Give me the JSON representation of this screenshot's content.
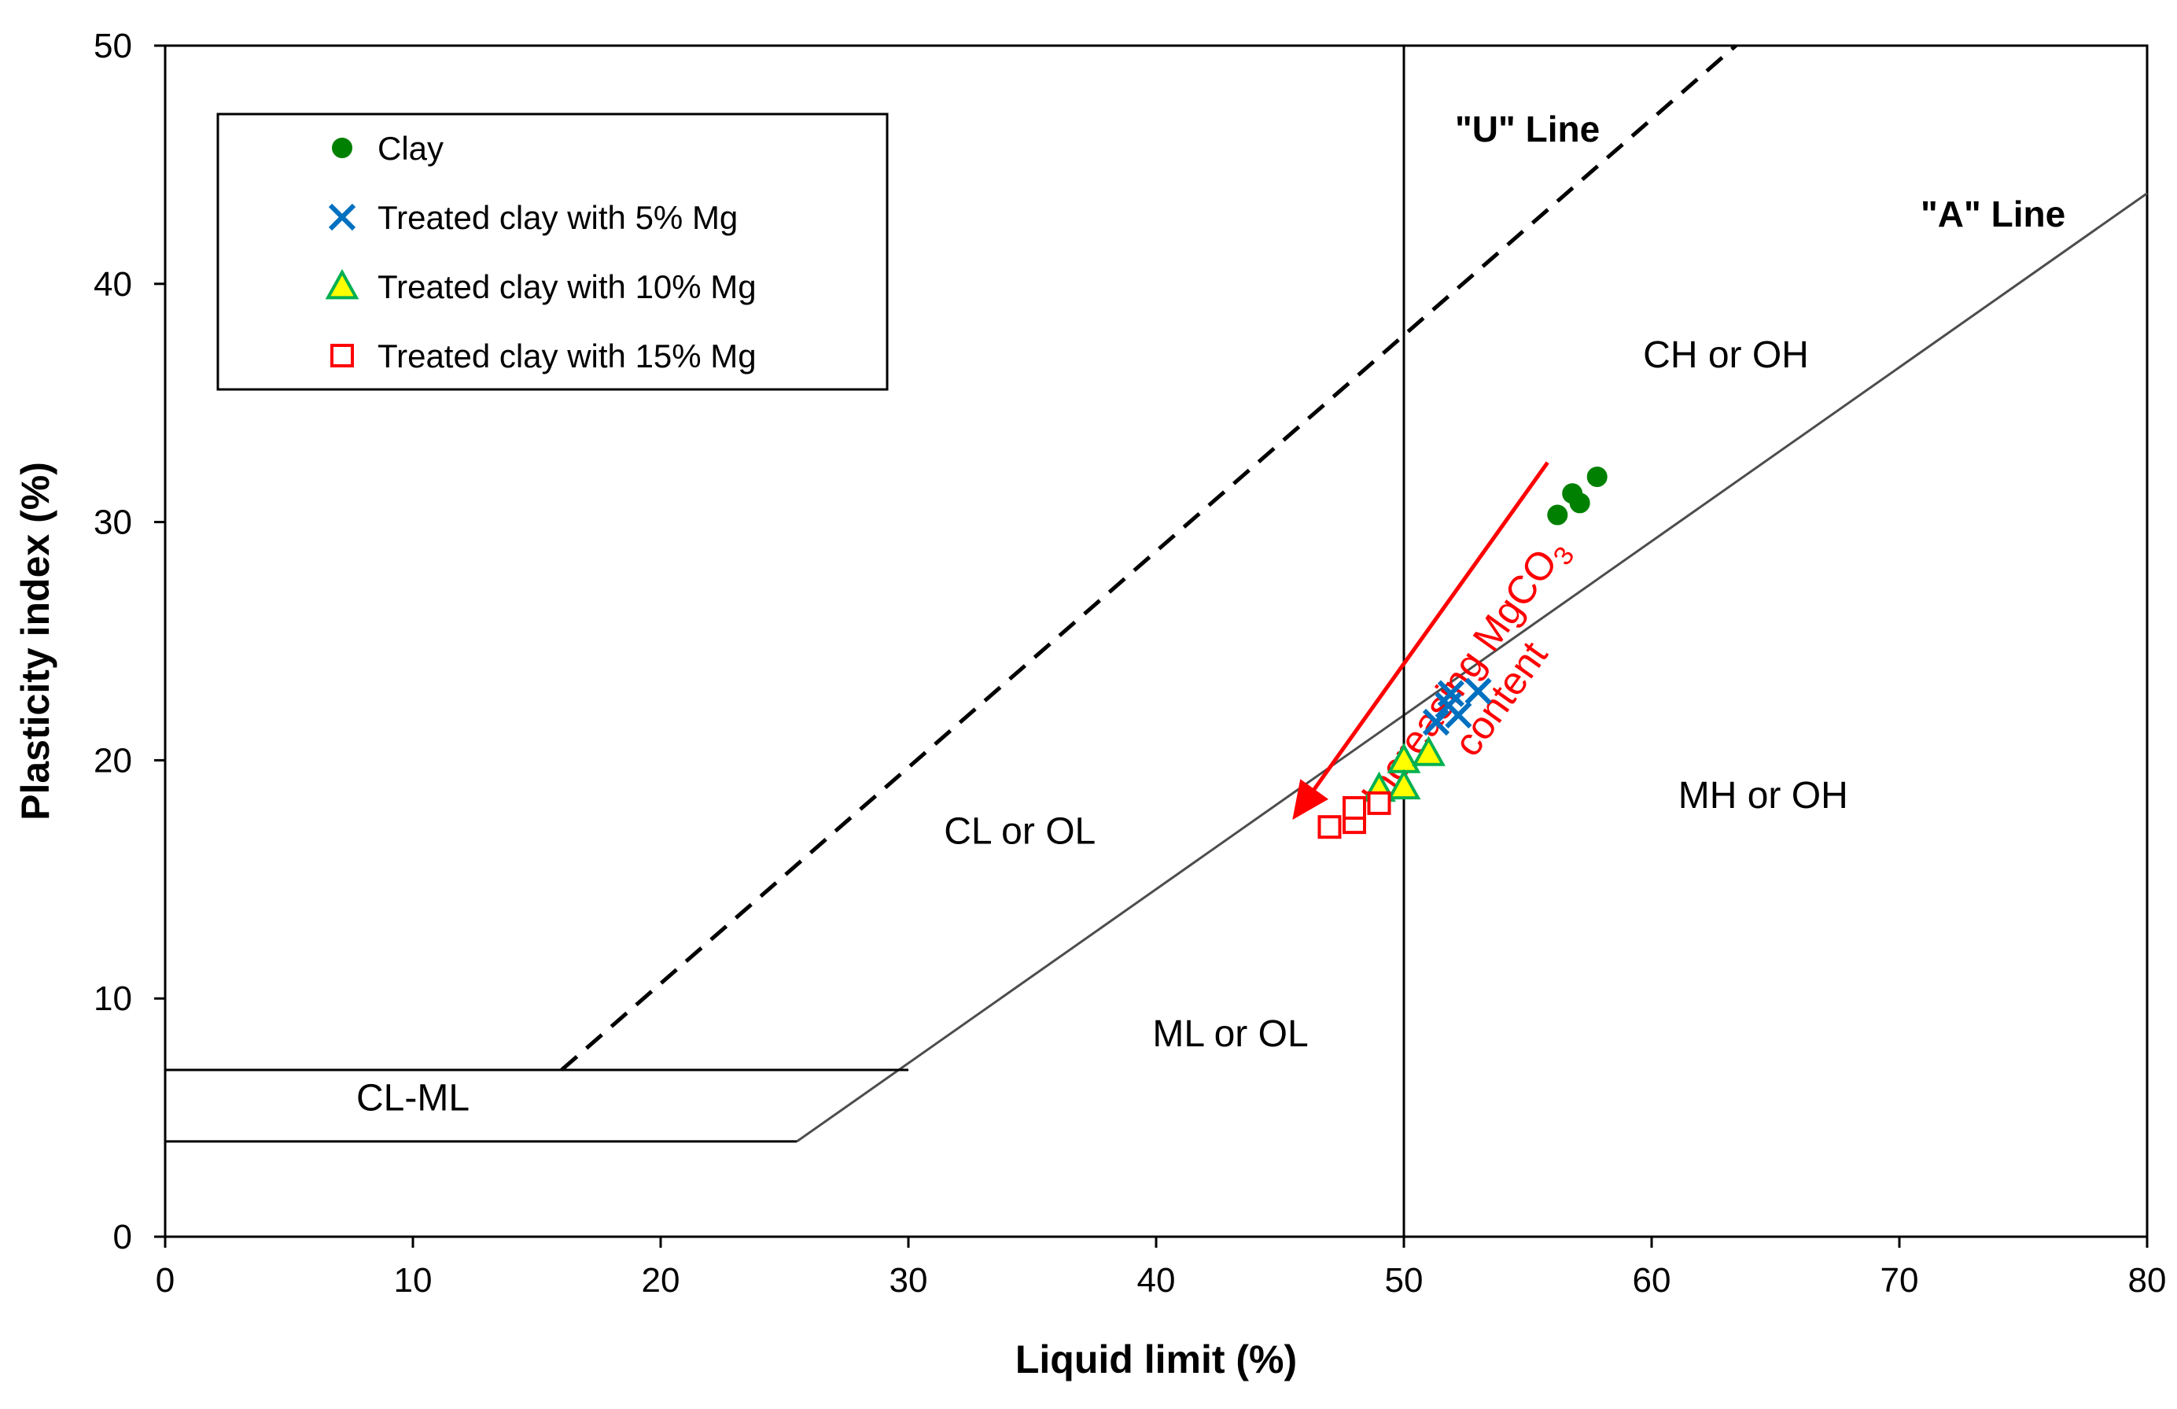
{
  "chart_data": {
    "type": "scatter",
    "title": "",
    "xlabel": "Liquid limit (%)",
    "ylabel": "Plasticity index (%)",
    "xlim": [
      0,
      80
    ],
    "ylim": [
      0,
      50
    ],
    "xticks": [
      0,
      10,
      20,
      30,
      40,
      50,
      60,
      70,
      80
    ],
    "yticks": [
      0,
      10,
      20,
      30,
      40,
      50
    ],
    "grid": false,
    "legend_position": "top-left",
    "series": [
      {
        "name": "Clay",
        "marker": "circle",
        "color": "#008000",
        "points": [
          [
            56.2,
            30.3
          ],
          [
            56.8,
            31.2
          ],
          [
            57.1,
            30.8
          ],
          [
            57.8,
            31.9
          ]
        ]
      },
      {
        "name": "Treated clay with 5% Mg",
        "marker": "x",
        "color": "#0070c0",
        "points": [
          [
            51.3,
            21.6
          ],
          [
            51.8,
            22.3
          ],
          [
            52.2,
            21.9
          ],
          [
            51.9,
            22.8
          ],
          [
            53.0,
            22.9
          ]
        ]
      },
      {
        "name": "Treated clay with 10% Mg",
        "marker": "triangle",
        "color": "#00b050",
        "fill": "#ffff00",
        "points": [
          [
            49.0,
            18.8
          ],
          [
            50.0,
            20.0
          ],
          [
            50.0,
            18.9
          ],
          [
            51.0,
            20.3
          ]
        ]
      },
      {
        "name": "Treated clay with 15% Mg",
        "marker": "square",
        "color": "#ff0000",
        "points": [
          [
            47.0,
            17.2
          ],
          [
            48.0,
            17.4
          ],
          [
            48.0,
            18.0
          ],
          [
            49.0,
            18.2
          ]
        ]
      }
    ],
    "reference_lines": {
      "a_line": {
        "label": "\"A\" Line",
        "points": [
          [
            25.5,
            4
          ],
          [
            80,
            43.8
          ]
        ]
      },
      "u_line": {
        "label": "\"U\" Line",
        "points": [
          [
            16,
            7
          ],
          [
            63.4,
            50
          ]
        ]
      },
      "ll50": {
        "x": 50
      },
      "cl_ml_upper": {
        "points": [
          [
            0,
            7
          ],
          [
            30,
            7
          ]
        ]
      },
      "cl_ml_lower": {
        "points": [
          [
            0,
            4
          ],
          [
            25.5,
            4
          ]
        ]
      }
    },
    "regions": [
      {
        "label": "CH or OH",
        "at": [
          63,
          36.5
        ]
      },
      {
        "label": "MH or OH",
        "at": [
          64.5,
          18
        ]
      },
      {
        "label": "CL or OL",
        "at": [
          34.5,
          16.5
        ]
      },
      {
        "label": "ML or OL",
        "at": [
          43,
          8
        ]
      },
      {
        "label": "CL-ML",
        "at": [
          10,
          5.3
        ]
      }
    ],
    "annotation": {
      "text_line1": "Increasing MgCO",
      "subscript": "3",
      "text_line2": "content",
      "arrow_from": [
        55.8,
        32.5
      ],
      "arrow_to": [
        45.5,
        17.5
      ],
      "color": "#ff0000"
    }
  }
}
